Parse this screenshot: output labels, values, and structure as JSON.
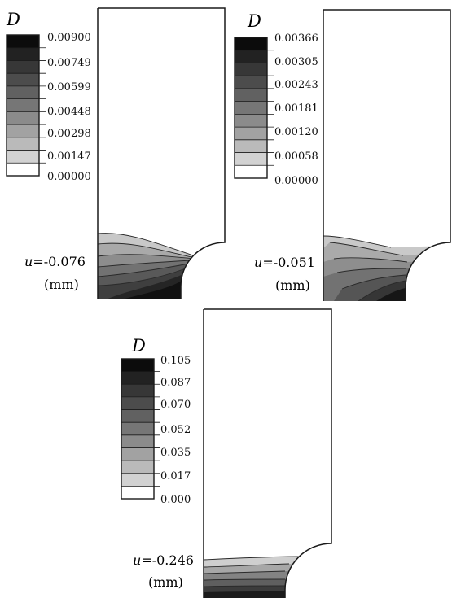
{
  "panels": [
    {
      "id": "top-left",
      "legend_title": "D",
      "legend_values": [
        "0.00900",
        "0.00749",
        "0.00599",
        "0.00448",
        "0.00298",
        "0.00147",
        "0.00000"
      ],
      "u_symbol": "u",
      "u_value": "=-0.076",
      "unit": "(mm)"
    },
    {
      "id": "top-right",
      "legend_title": "D",
      "legend_values": [
        "0.00366",
        "0.00305",
        "0.00243",
        "0.00181",
        "0.00120",
        "0.00058",
        "0.00000"
      ],
      "u_symbol": "u",
      "u_value": "=-0.051",
      "unit": "(mm)"
    },
    {
      "id": "bottom",
      "legend_title": "D",
      "legend_values": [
        "0.105",
        "0.087",
        "0.070",
        "0.052",
        "0.035",
        "0.017",
        "0.000"
      ],
      "u_symbol": "u",
      "u_value": "=-0.246",
      "unit": "(mm)"
    }
  ],
  "colors": {
    "band_shades": [
      "#0c0c0c",
      "#222222",
      "#373737",
      "#4c4c4c",
      "#616161",
      "#767676",
      "#8b8b8b",
      "#a2a2a2",
      "#bababa",
      "#d2d2d2",
      "#ffffff"
    ],
    "outline": "#1a1a1a",
    "contour_line": "#2a2a2a"
  }
}
